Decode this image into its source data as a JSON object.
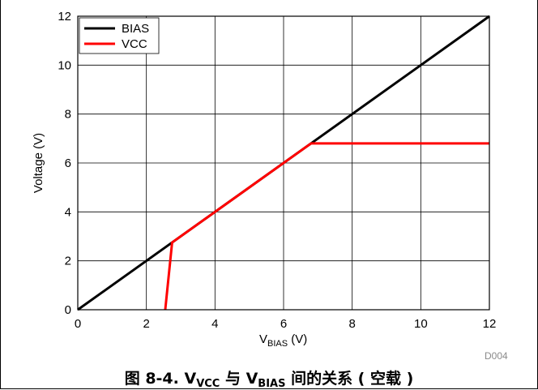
{
  "chart_data": {
    "type": "line",
    "xlabel_main": "V",
    "xlabel_sub": "BIAS",
    "xlabel_unit": " (V)",
    "ylabel": "Voltage (V)",
    "xlim": [
      0,
      12
    ],
    "ylim": [
      0,
      12
    ],
    "xticks": [
      0,
      2,
      4,
      6,
      8,
      10,
      12
    ],
    "yticks": [
      0,
      2,
      4,
      6,
      8,
      10,
      12
    ],
    "grid": true,
    "legend_position": "top-left",
    "chart_id": "D004",
    "series": [
      {
        "name": "BIAS",
        "color": "#000000",
        "x": [
          0,
          12
        ],
        "y": [
          0,
          12
        ]
      },
      {
        "name": "VCC",
        "color": "#ff0000",
        "x": [
          2.55,
          2.75,
          6.8,
          12
        ],
        "y": [
          0,
          2.75,
          6.8,
          6.8
        ]
      }
    ]
  },
  "caption": {
    "prefix": "图 8-4. V",
    "sub1": "VCC",
    "middle": " 与 V",
    "sub2": "BIAS",
    "suffix": " 间的关系 ( 空载 )"
  }
}
